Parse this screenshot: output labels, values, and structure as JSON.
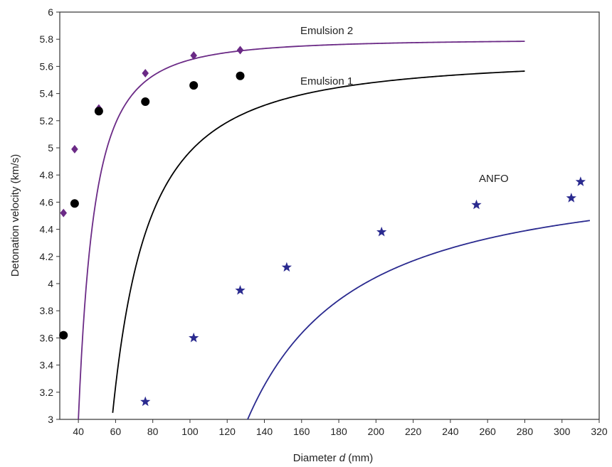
{
  "chart_data": {
    "type": "scatter",
    "xlabel_main": "Diameter ",
    "xlabel_italic": "d",
    "xlabel_unit": " (mm)",
    "ylabel": "Detonation velocity (km/s)",
    "xlim": [
      30,
      320
    ],
    "ylim": [
      3,
      6
    ],
    "x_ticks": [
      40,
      60,
      80,
      100,
      120,
      140,
      160,
      180,
      200,
      220,
      240,
      260,
      280,
      300,
      320
    ],
    "y_ticks": [
      3,
      3.2,
      3.4,
      3.6,
      3.8,
      4,
      4.2,
      4.4,
      4.6,
      4.8,
      5,
      5.2,
      5.4,
      5.6,
      5.8,
      6
    ],
    "grid": false,
    "series": [
      {
        "name": "Emulsion 2",
        "marker": "diamond",
        "color": "#6b2a86",
        "points": [
          {
            "x": 32,
            "y": 4.52
          },
          {
            "x": 38,
            "y": 4.99
          },
          {
            "x": 51,
            "y": 5.29
          },
          {
            "x": 76,
            "y": 5.55
          },
          {
            "x": 102,
            "y": 5.68
          },
          {
            "x": 127,
            "y": 5.72
          }
        ],
        "fit": {
          "from": 30,
          "to": 280,
          "vmax": 5.8,
          "b": 16.5,
          "c": 23.5,
          "p": 1.9
        }
      },
      {
        "name": "Emulsion 1",
        "marker": "circle",
        "color": "#000000",
        "points": [
          {
            "x": 32,
            "y": 3.62
          },
          {
            "x": 38,
            "y": 4.59
          },
          {
            "x": 51,
            "y": 5.27
          },
          {
            "x": 76,
            "y": 5.34
          },
          {
            "x": 102,
            "y": 5.46
          },
          {
            "x": 127,
            "y": 5.53
          }
        ],
        "fit": {
          "from": 32,
          "to": 280,
          "vmax": 5.67,
          "b": 29,
          "c": 29.1,
          "p": 1.5
        }
      },
      {
        "name": "ANFO",
        "marker": "star",
        "color": "#2a2a8f",
        "points": [
          {
            "x": 76,
            "y": 3.13
          },
          {
            "x": 102,
            "y": 3.6
          },
          {
            "x": 127,
            "y": 3.95
          },
          {
            "x": 152,
            "y": 4.12
          },
          {
            "x": 203,
            "y": 4.38
          },
          {
            "x": 254,
            "y": 4.58
          },
          {
            "x": 305,
            "y": 4.63
          },
          {
            "x": 310,
            "y": 4.75
          }
        ],
        "fit": {
          "from": 75,
          "to": 315,
          "vmax": 4.83,
          "b": 75,
          "c": 56,
          "p": 1.3
        }
      }
    ]
  }
}
